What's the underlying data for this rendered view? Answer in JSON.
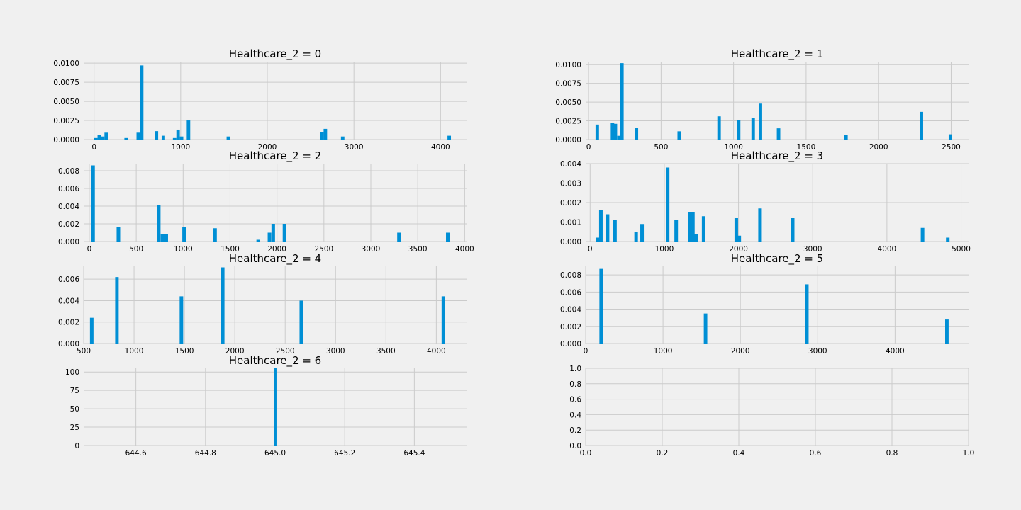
{
  "figure": {
    "background": "#f0f0f0",
    "bar_color": "#008fd5",
    "grid_color": "#cbcbcb"
  },
  "chart_data": [
    {
      "type": "bar",
      "title": "Healthcare_2 = 0",
      "xlim": [
        -120,
        4300
      ],
      "ylim": [
        0,
        0.0102
      ],
      "xticks": [
        0,
        1000,
        2000,
        3000,
        4000
      ],
      "xtick_labels": [
        "0",
        "1000",
        "2000",
        "3000",
        "4000"
      ],
      "yticks": [
        0,
        0.0025,
        0.005,
        0.0075,
        0.01
      ],
      "ytick_labels": [
        "0.0000",
        "0.0025",
        "0.0050",
        "0.0075",
        "0.0100"
      ],
      "bin_width": 40,
      "grid": true,
      "bars": [
        [
          20,
          0.0002
        ],
        [
          60,
          0.0006
        ],
        [
          100,
          0.0004
        ],
        [
          140,
          0.0009
        ],
        [
          370,
          0.0002
        ],
        [
          510,
          0.0009
        ],
        [
          550,
          0.0097
        ],
        [
          720,
          0.0011
        ],
        [
          800,
          0.0005
        ],
        [
          930,
          0.0002
        ],
        [
          970,
          0.0013
        ],
        [
          1010,
          0.0004
        ],
        [
          1090,
          0.0025
        ],
        [
          1550,
          0.0004
        ],
        [
          2630,
          0.001
        ],
        [
          2670,
          0.0014
        ],
        [
          2870,
          0.0004
        ],
        [
          4100,
          0.0005
        ]
      ]
    },
    {
      "type": "bar",
      "title": "Healthcare_2 = 1",
      "xlim": [
        -20,
        2620
      ],
      "ylim": [
        0,
        0.0104
      ],
      "xticks": [
        0,
        500,
        1000,
        1500,
        2000,
        2500
      ],
      "xtick_labels": [
        "0",
        "500",
        "1000",
        "1500",
        "2000",
        "2500"
      ],
      "yticks": [
        0,
        0.0025,
        0.005,
        0.0075,
        0.01
      ],
      "ytick_labels": [
        "0.0000",
        "0.0025",
        "0.0050",
        "0.0075",
        "0.0100"
      ],
      "bin_width": 24,
      "grid": true,
      "bars": [
        [
          60,
          0.002
        ],
        [
          165,
          0.0022
        ],
        [
          185,
          0.0021
        ],
        [
          210,
          0.0005
        ],
        [
          230,
          0.0102
        ],
        [
          330,
          0.0016
        ],
        [
          625,
          0.0011
        ],
        [
          900,
          0.0031
        ],
        [
          1035,
          0.0026
        ],
        [
          1135,
          0.0029
        ],
        [
          1185,
          0.0048
        ],
        [
          1310,
          0.0015
        ],
        [
          1775,
          0.0006
        ],
        [
          2295,
          0.0037
        ],
        [
          2495,
          0.0007
        ]
      ]
    },
    {
      "type": "bar",
      "title": "Healthcare_2 = 2",
      "xlim": [
        -60,
        4020
      ],
      "ylim": [
        0,
        0.0088
      ],
      "xticks": [
        0,
        500,
        1000,
        1500,
        2000,
        2500,
        3000,
        3500,
        4000
      ],
      "xtick_labels": [
        "0",
        "500",
        "1000",
        "1500",
        "2000",
        "2500",
        "3000",
        "3500",
        "4000"
      ],
      "yticks": [
        0,
        0.002,
        0.004,
        0.006,
        0.008
      ],
      "ytick_labels": [
        "0.000",
        "0.002",
        "0.004",
        "0.006",
        "0.008"
      ],
      "bin_width": 38,
      "grid": true,
      "bars": [
        [
          40,
          0.0086
        ],
        [
          310,
          0.0016
        ],
        [
          740,
          0.0041
        ],
        [
          780,
          0.0008
        ],
        [
          820,
          0.0008
        ],
        [
          1010,
          0.0016
        ],
        [
          1340,
          0.0015
        ],
        [
          1800,
          0.0002
        ],
        [
          1920,
          0.001
        ],
        [
          1960,
          0.002
        ],
        [
          2080,
          0.002
        ],
        [
          3300,
          0.001
        ],
        [
          3820,
          0.001
        ]
      ]
    },
    {
      "type": "bar",
      "title": "Healthcare_2 = 3",
      "xlim": [
        -60,
        5100
      ],
      "ylim": [
        0,
        0.004
      ],
      "xticks": [
        0,
        1000,
        2000,
        3000,
        4000,
        5000
      ],
      "xtick_labels": [
        "0",
        "1000",
        "2000",
        "3000",
        "4000",
        "5000"
      ],
      "yticks": [
        0,
        0.001,
        0.002,
        0.003,
        0.004
      ],
      "ytick_labels": [
        "0.000",
        "0.001",
        "0.002",
        "0.003",
        "0.004"
      ],
      "bin_width": 48,
      "grid": true,
      "bars": [
        [
          100,
          0.0002
        ],
        [
          145,
          0.0016
        ],
        [
          235,
          0.0014
        ],
        [
          335,
          0.0011
        ],
        [
          620,
          0.0005
        ],
        [
          700,
          0.0009
        ],
        [
          1045,
          0.0038
        ],
        [
          1160,
          0.0011
        ],
        [
          1340,
          0.0015
        ],
        [
          1385,
          0.0015
        ],
        [
          1430,
          0.0004
        ],
        [
          1530,
          0.0013
        ],
        [
          1970,
          0.0012
        ],
        [
          2010,
          0.0003
        ],
        [
          2290,
          0.0017
        ],
        [
          2730,
          0.0012
        ],
        [
          4480,
          0.0007
        ],
        [
          4820,
          0.0002
        ]
      ]
    },
    {
      "type": "bar",
      "title": "Healthcare_2 = 4",
      "xlim": [
        500,
        4300
      ],
      "ylim": [
        0,
        0.0072
      ],
      "xticks": [
        500,
        1000,
        1500,
        2000,
        2500,
        3000,
        3500,
        4000
      ],
      "xtick_labels": [
        "500",
        "1000",
        "1500",
        "2000",
        "2500",
        "3000",
        "3500",
        "4000"
      ],
      "yticks": [
        0,
        0.002,
        0.004,
        0.006
      ],
      "ytick_labels": [
        "0.000",
        "0.002",
        "0.004",
        "0.006"
      ],
      "bin_width": 35,
      "grid": true,
      "bars": [
        [
          580,
          0.0024
        ],
        [
          830,
          0.0062
        ],
        [
          1470,
          0.0044
        ],
        [
          1880,
          0.0071
        ],
        [
          2660,
          0.004
        ],
        [
          4070,
          0.0044
        ]
      ]
    },
    {
      "type": "bar",
      "title": "Healthcare_2 = 5",
      "xlim": [
        0,
        4950
      ],
      "ylim": [
        0,
        0.009
      ],
      "xticks": [
        0,
        1000,
        2000,
        3000,
        4000
      ],
      "xtick_labels": [
        "0",
        "1000",
        "2000",
        "3000",
        "4000"
      ],
      "yticks": [
        0,
        0.002,
        0.004,
        0.006,
        0.008
      ],
      "ytick_labels": [
        "0.000",
        "0.002",
        "0.004",
        "0.006",
        "0.008"
      ],
      "bin_width": 45,
      "grid": true,
      "bars": [
        [
          200,
          0.0087
        ],
        [
          1550,
          0.0035
        ],
        [
          2860,
          0.0069
        ],
        [
          4670,
          0.0028
        ]
      ]
    },
    {
      "type": "bar",
      "title": "Healthcare_2 = 6",
      "xlim": [
        644.45,
        645.55
      ],
      "ylim": [
        0,
        105
      ],
      "xticks": [
        644.6,
        644.8,
        645.0,
        645.2,
        645.4
      ],
      "xtick_labels": [
        "644.6",
        "644.8",
        "645.0",
        "645.2",
        "645.4"
      ],
      "yticks": [
        0,
        25,
        50,
        75,
        100
      ],
      "ytick_labels": [
        "0",
        "25",
        "50",
        "75",
        "100"
      ],
      "bin_width": 0.008,
      "grid": true,
      "bars": [
        [
          645.0,
          105
        ]
      ]
    },
    {
      "type": "bar",
      "title": "",
      "xlim": [
        0,
        1
      ],
      "ylim": [
        0,
        1
      ],
      "xticks": [
        0,
        0.2,
        0.4,
        0.6,
        0.8,
        1.0
      ],
      "xtick_labels": [
        "0.0",
        "0.2",
        "0.4",
        "0.6",
        "0.8",
        "1.0"
      ],
      "yticks": [
        0,
        0.2,
        0.4,
        0.6,
        0.8,
        1.0
      ],
      "ytick_labels": [
        "0.0",
        "0.2",
        "0.4",
        "0.6",
        "0.8",
        "1.0"
      ],
      "bin_width": 0,
      "grid": true,
      "bars": []
    }
  ]
}
